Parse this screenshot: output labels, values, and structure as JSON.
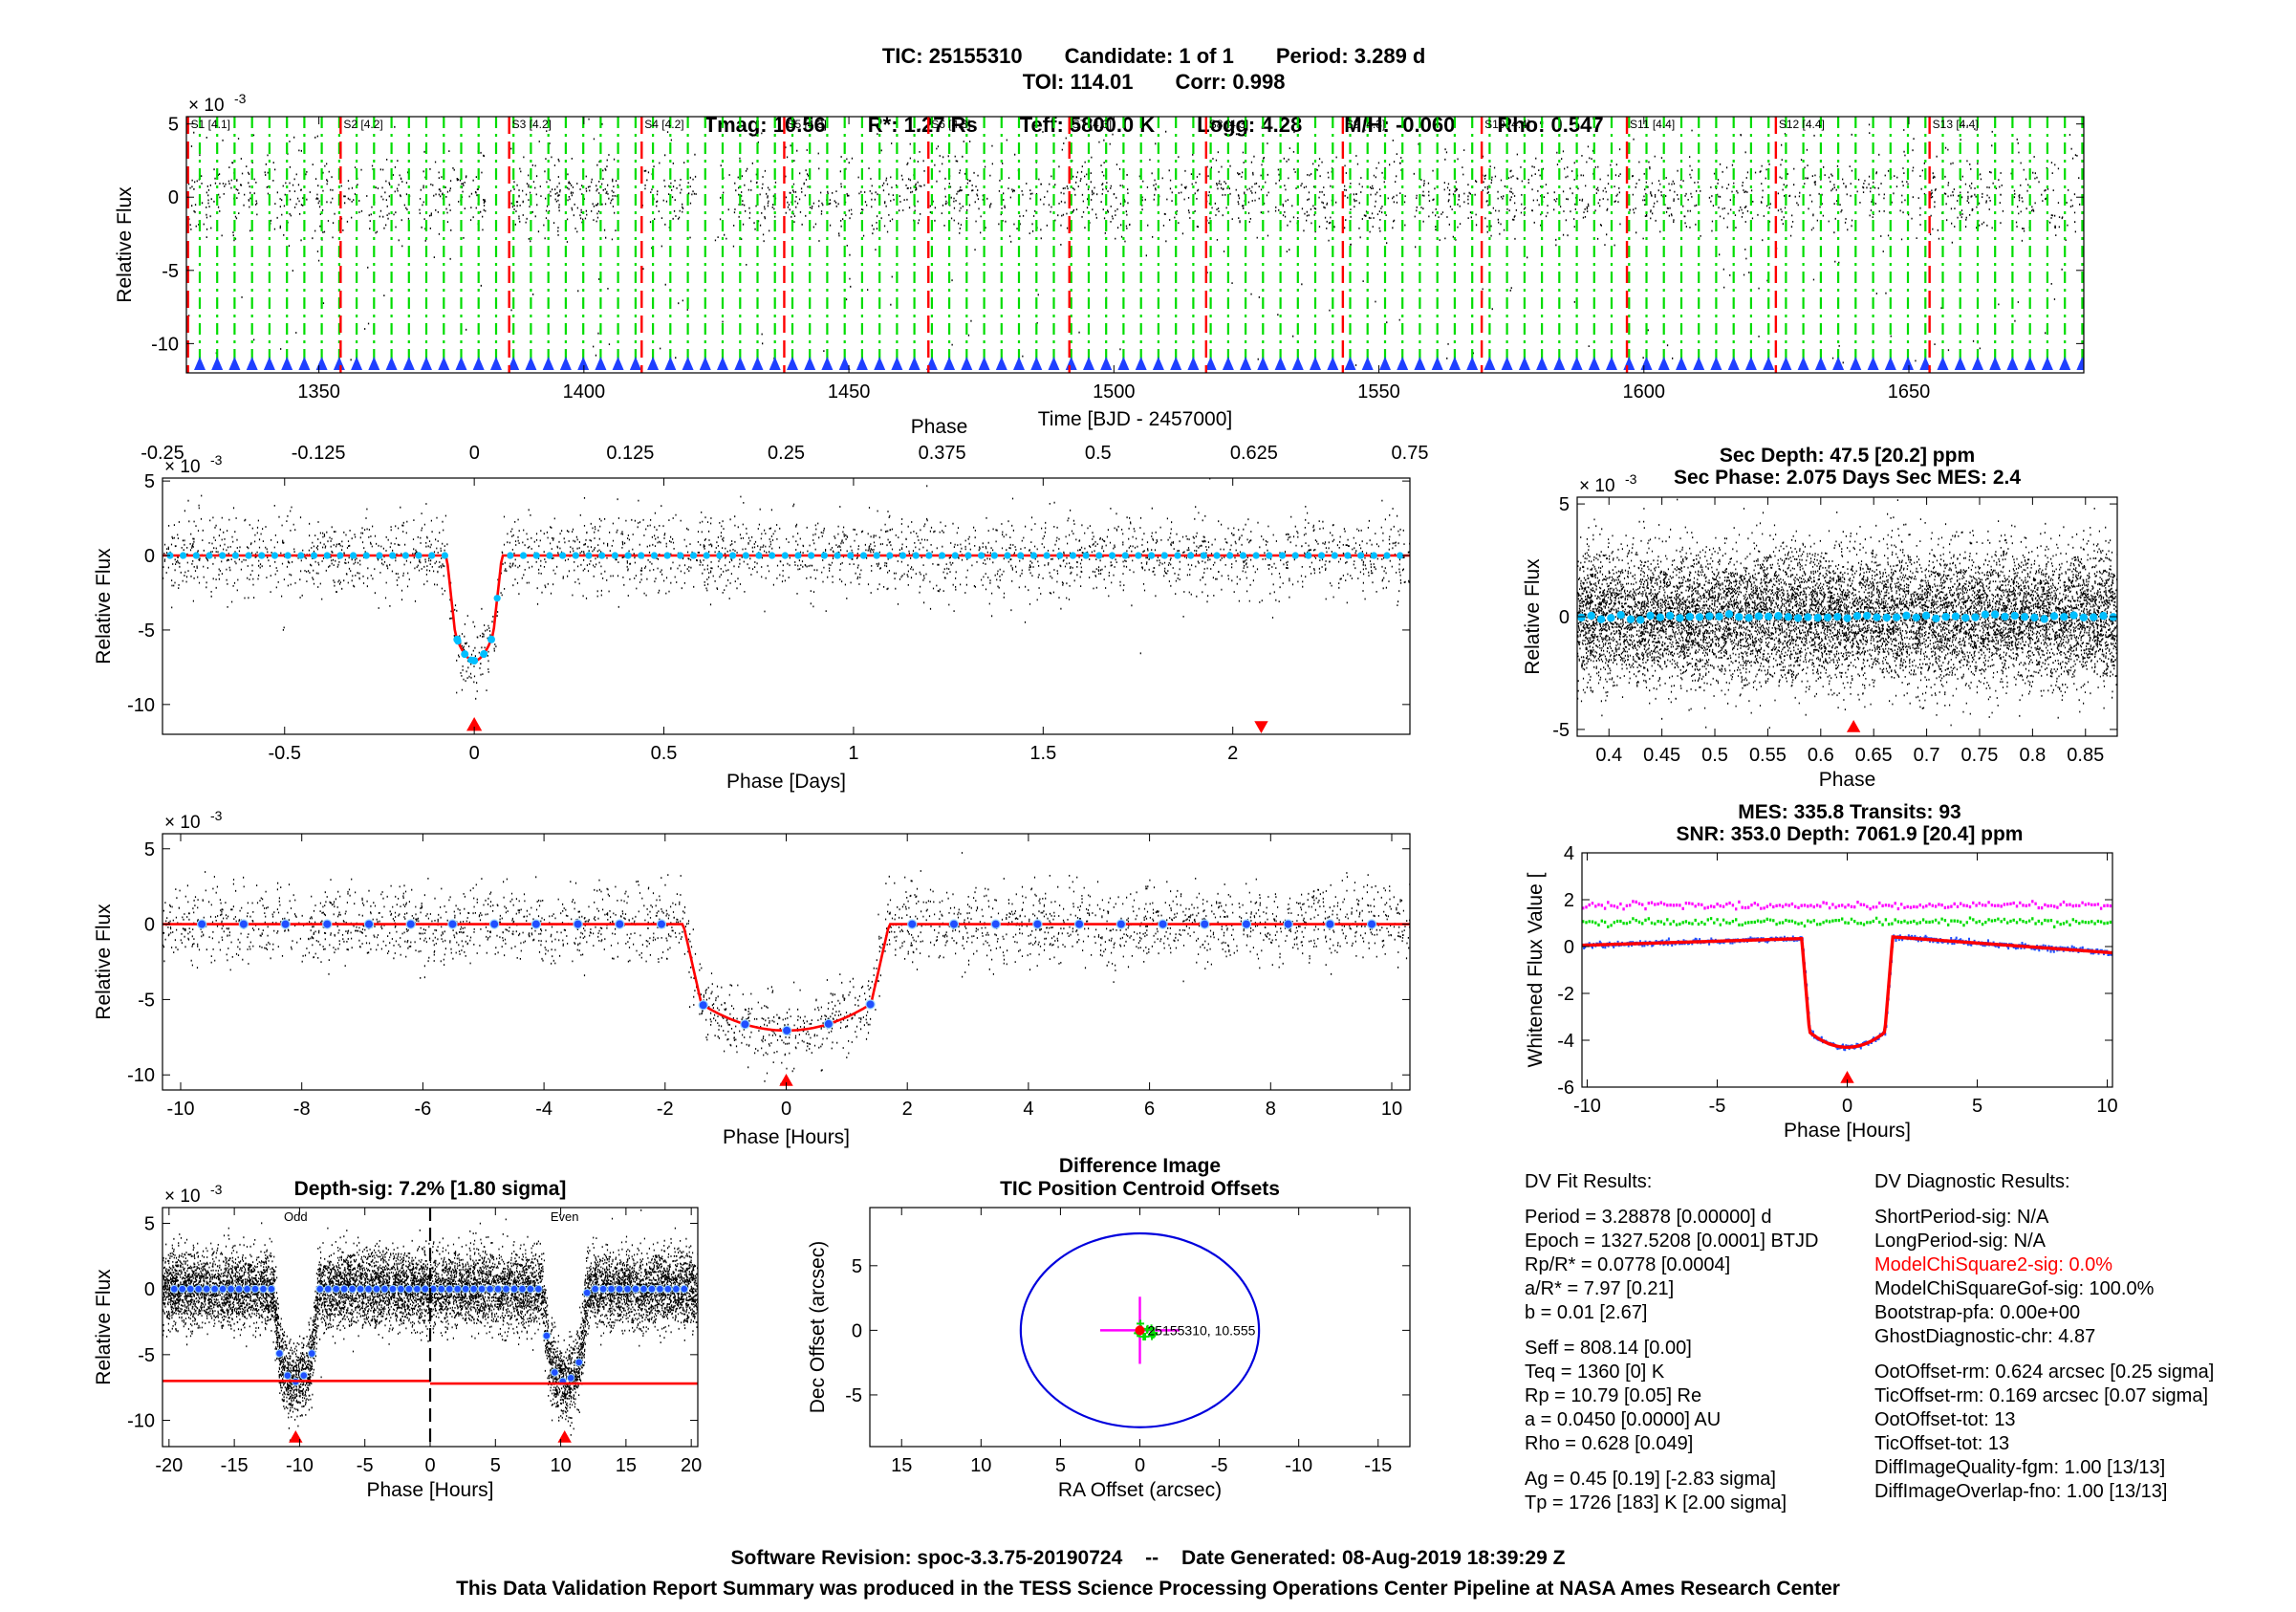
{
  "header": {
    "tic": "TIC: 25155310",
    "candidate": "Candidate: 1 of 1",
    "period": "Period: 3.289 d",
    "toi": "TOI: 114.01",
    "corr": "Corr: 0.998",
    "tmag": "Tmag: 10.56",
    "rstar": "R*: 1.27 Rs",
    "teff": "Teff: 5800.0 K",
    "logg": "Logg: 4.28",
    "mh": "M/H: -0.060",
    "rho": "Rho: 0.547"
  },
  "colors": {
    "data": "#000000",
    "model": "#ff0000",
    "binned": "#00bfff",
    "binned_blue": "#1f4fff",
    "transit_marker": "#1f3fff",
    "sector_line": "#ff0000",
    "transit_line": "#00dd00",
    "whitened_magenta": "#ff00ff",
    "whitened_green": "#00dd00",
    "circle": "#0000dd"
  },
  "chart_data": [
    {
      "id": "full-light-curve",
      "type": "scatter",
      "xlabel": "Time [BJD - 2457000]",
      "ylabel": "Relative Flux",
      "yexp": "× 10",
      "yexp_power": "-3",
      "xlim": [
        1325,
        1683
      ],
      "ylim": [
        -12,
        5.5
      ],
      "xticks": [
        1350,
        1400,
        1450,
        1500,
        1550,
        1600,
        1650
      ],
      "yticks": [
        5,
        0,
        -5,
        -10
      ],
      "sectors": [
        {
          "label": "S1 [4.1]",
          "start": 1325.3,
          "end": 1353.2
        },
        {
          "label": "S2 [4.2]",
          "start": 1354.1,
          "end": 1381.5
        },
        {
          "label": "S3 [4.2]",
          "start": 1385.9,
          "end": 1406.3
        },
        {
          "label": "S4 [4.2]",
          "start": 1410.9,
          "end": 1436.9
        },
        {
          "label": "S5 [4.3]",
          "start": 1437.8,
          "end": 1464.4
        },
        {
          "label": "S6 [4.3]",
          "start": 1465.0,
          "end": 1491.6
        },
        {
          "label": "S7 [4.3]",
          "start": 1491.6,
          "end": 1516.1
        },
        {
          "label": "S8 [4.3]",
          "start": 1517.4,
          "end": 1542.0
        },
        {
          "label": "S9 [4.3]",
          "start": 1543.2,
          "end": 1568.5
        },
        {
          "label": "S10 [4.4]",
          "start": 1569.4,
          "end": 1595.7
        },
        {
          "label": "S11 [4.4]",
          "start": 1596.8,
          "end": 1623.9
        },
        {
          "label": "S12 [4.4]",
          "start": 1624.9,
          "end": 1652.9
        },
        {
          "label": "S13 [4.4]",
          "start": 1653.9,
          "end": 1682.4
        }
      ],
      "gaps": [
        [
          1338.5,
          1339.7
        ],
        [
          1367.2,
          1368.6
        ],
        [
          1381.5,
          1385.9
        ],
        [
          1395.5,
          1396.6
        ],
        [
          1406.3,
          1410.9
        ],
        [
          1421.2,
          1424.6
        ],
        [
          1450.5,
          1451.6
        ],
        [
          1477.0,
          1478.1
        ],
        [
          1503.0,
          1504.7
        ],
        [
          1529.1,
          1530.3
        ],
        [
          1555.5,
          1556.5
        ],
        [
          1581.8,
          1582.9
        ],
        [
          1610.8,
          1611.9
        ],
        [
          1639.2,
          1640.0
        ],
        [
          1667.7,
          1668.8
        ]
      ],
      "epoch": 1327.5208,
      "period": 3.28878
    },
    {
      "id": "phase-folded",
      "type": "scatter",
      "xlabel": "Phase [Days]",
      "ylabel": "Relative Flux",
      "top_xlabel": "Phase",
      "yexp": "× 10",
      "yexp_power": "-3",
      "xlim": [
        -0.822,
        2.467
      ],
      "ylim": [
        -12,
        5.2
      ],
      "xticks": [
        -0.5,
        0,
        0.5,
        1,
        1.5,
        2
      ],
      "xtick_labels": [
        "-0.5",
        "0",
        "0.5",
        "1",
        "1.5",
        "2"
      ],
      "top_xticks": [
        "-0.25",
        "-0.125",
        "0",
        "0.125",
        "0.25",
        "0.375",
        "0.5",
        "0.625",
        "0.75"
      ],
      "yticks": [
        5,
        0,
        -5,
        -10
      ],
      "primary_marker": 0,
      "secondary_marker": 2.075
    },
    {
      "id": "secondary-eclipse",
      "type": "scatter",
      "title_line1": "Sec Depth: 47.5 [20.2] ppm",
      "title_line2": "Sec Phase: 2.075 Days   Sec MES: 2.4",
      "xlabel": "Phase",
      "ylabel": "Relative Flux",
      "yexp": "× 10",
      "yexp_power": "-3",
      "xlim": [
        0.37,
        0.88
      ],
      "ylim": [
        -5.3,
        5.3
      ],
      "xticks": [
        0.4,
        0.45,
        0.5,
        0.55,
        0.6,
        0.65,
        0.7,
        0.75,
        0.8,
        0.85
      ],
      "xtick_labels": [
        "0.4",
        "0.45",
        "0.5",
        "0.55",
        "0.6",
        "0.65",
        "0.7",
        "0.75",
        "0.8",
        "0.85"
      ],
      "yticks": [
        5,
        0,
        -5
      ],
      "marker": 0.631
    },
    {
      "id": "transit-zoom",
      "type": "scatter",
      "xlabel": "Phase [Hours]",
      "ylabel": "Relative Flux",
      "yexp": "× 10",
      "yexp_power": "-3",
      "xlim": [
        -10.3,
        10.3
      ],
      "ylim": [
        -11,
        6.0
      ],
      "xticks": [
        -10,
        -8,
        -6,
        -4,
        -2,
        0,
        2,
        4,
        6,
        8,
        10
      ],
      "yticks": [
        5,
        0,
        -5,
        -10
      ],
      "depth": -7.06,
      "half_duration": 1.7,
      "marker": 0
    },
    {
      "id": "whitened",
      "type": "line",
      "title_line1": "MES: 335.8   Transits: 93",
      "title_line2": "SNR: 353.0   Depth: 7061.9 [20.4] ppm",
      "xlabel": "Phase [Hours]",
      "ylabel": "Whitened Flux Value [",
      "xlim": [
        -10.2,
        10.2
      ],
      "ylim": [
        -6,
        4
      ],
      "xticks": [
        -10,
        -5,
        0,
        5,
        10
      ],
      "yticks": [
        4,
        2,
        0,
        -2,
        -4,
        -6
      ],
      "magenta_level": 1.75,
      "green_level": 1.05,
      "depth": -4.3,
      "marker": 0
    },
    {
      "id": "odd-even",
      "type": "scatter",
      "title": "Depth-sig: 7.2% [1.80 sigma]",
      "xlabel": "Phase [Hours]",
      "ylabel": "Relative Flux",
      "yexp": "× 10",
      "yexp_power": "-3",
      "odd_label": "Odd",
      "even_label": "Even",
      "xlim": [
        -20.5,
        20.5
      ],
      "ylim": [
        -12,
        6.2
      ],
      "xticks": [
        -20,
        -15,
        -10,
        -5,
        0,
        5,
        10,
        15,
        20
      ],
      "yticks": [
        5,
        0,
        -5,
        -10
      ],
      "odd_center": -10.3,
      "even_center": 10.3,
      "model_level_odd": -7.0,
      "model_level_even": -7.2
    },
    {
      "id": "centroid",
      "type": "scatter",
      "title_line1": "Difference Image",
      "title_line2": "TIC Position Centroid Offsets",
      "xlabel": "RA Offset (arcsec)",
      "ylabel": "Dec Offset (arcsec)",
      "xlim": [
        17,
        -17
      ],
      "ylim": [
        -9,
        9.5
      ],
      "xticks": [
        15,
        10,
        5,
        0,
        -5,
        -10,
        -15
      ],
      "yticks": [
        5,
        0,
        -5
      ],
      "circle_radius": 7.5,
      "star_label": "25155310, 10.555"
    }
  ],
  "dv_fit": {
    "title": "DV Fit Results:",
    "lines": [
      "Period = 3.28878 [0.00000] d",
      "Epoch = 1327.5208 [0.0001] BTJD",
      "Rp/R* = 0.0778 [0.0004]",
      "a/R* = 7.97 [0.21]",
      "b = 0.01 [2.67]",
      "",
      "Seff = 808.14 [0.00]",
      "Teq = 1360 [0] K",
      "Rp = 10.79 [0.05] Re",
      "a = 0.0450 [0.0000] AU",
      "Rho = 0.628 [0.049]",
      "",
      "Ag = 0.45 [0.19]  [-2.83 sigma]",
      "Tp = 1726 [183] K  [2.00 sigma]"
    ]
  },
  "dv_diag": {
    "title": "DV Diagnostic Results:",
    "lines": [
      {
        "text": "ShortPeriod-sig: N/A",
        "color": "#000000"
      },
      {
        "text": "LongPeriod-sig: N/A",
        "color": "#000000"
      },
      {
        "text": "ModelChiSquare2-sig: 0.0%",
        "color": "#ff0000"
      },
      {
        "text": "ModelChiSquareGof-sig: 100.0%",
        "color": "#000000"
      },
      {
        "text": "Bootstrap-pfa: 0.00e+00",
        "color": "#000000"
      },
      {
        "text": "GhostDiagnostic-chr: 4.87",
        "color": "#000000"
      },
      {
        "text": "",
        "color": "#000000"
      },
      {
        "text": "OotOffset-rm: 0.624 arcsec [0.25 sigma]",
        "color": "#000000"
      },
      {
        "text": "TicOffset-rm: 0.169 arcsec [0.07 sigma]",
        "color": "#000000"
      },
      {
        "text": "OotOffset-tot: 13",
        "color": "#000000"
      },
      {
        "text": "TicOffset-tot: 13",
        "color": "#000000"
      },
      {
        "text": "DiffImageQuality-fgm: 1.00 [13/13]",
        "color": "#000000"
      },
      {
        "text": "DiffImageOverlap-fno: 1.00 [13/13]",
        "color": "#000000"
      }
    ]
  },
  "footer": {
    "software": "Software Revision: spoc-3.3.75-20190724",
    "separator": "--",
    "date": "Date Generated: 08-Aug-2019 18:39:29 Z",
    "note": "This Data Validation Report Summary was produced in the TESS Science Processing Operations Center Pipeline at NASA Ames Research Center"
  }
}
